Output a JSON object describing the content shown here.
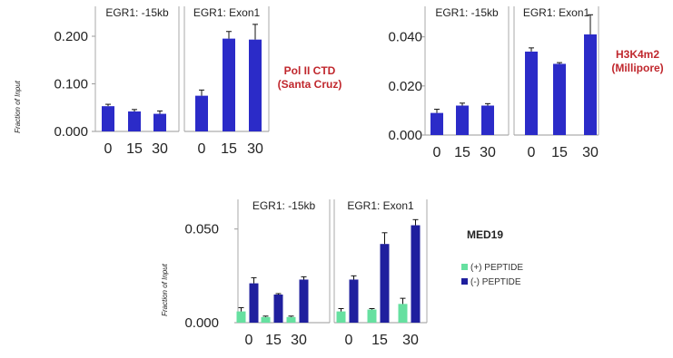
{
  "chart_data": [
    {
      "type": "bar",
      "ylabel": "Fraction of Input",
      "ylim": [
        0,
        0.24
      ],
      "yticks": [
        "0.000",
        "0.100",
        "0.200"
      ],
      "ytick_values": [
        0,
        0.1,
        0.2
      ],
      "annotation": {
        "lines": [
          "Pol II CTD",
          "(Santa Cruz)"
        ],
        "color": "#c0272d"
      },
      "bar_color": "#2b2bc8",
      "panels": [
        {
          "title": "EGR1: -15kb",
          "categories": [
            "0",
            "15",
            "30"
          ],
          "series": [
            {
              "values": [
                0.053,
                0.042,
                0.037
              ],
              "errors": [
                0.004,
                0.004,
                0.006
              ]
            }
          ]
        },
        {
          "title": "EGR1: Exon1",
          "categories": [
            "0",
            "15",
            "30"
          ],
          "series": [
            {
              "values": [
                0.075,
                0.195,
                0.193
              ],
              "errors": [
                0.012,
                0.015,
                0.032
              ]
            }
          ]
        }
      ]
    },
    {
      "type": "bar",
      "ylabel": "",
      "ylim": [
        0,
        0.048
      ],
      "yticks": [
        "0.000",
        "0.020",
        "0.040"
      ],
      "ytick_values": [
        0,
        0.02,
        0.04
      ],
      "annotation": {
        "lines": [
          "H3K4m2",
          "(Millipore)"
        ],
        "color": "#c0272d"
      },
      "bar_color": "#2b2bc8",
      "panels": [
        {
          "title": "EGR1: -15kb",
          "categories": [
            "0",
            "15",
            "30"
          ],
          "series": [
            {
              "values": [
                0.009,
                0.012,
                0.012
              ],
              "errors": [
                0.0015,
                0.001,
                0.0008
              ]
            }
          ]
        },
        {
          "title": "EGR1: Exon1",
          "categories": [
            "0",
            "15",
            "30"
          ],
          "series": [
            {
              "values": [
                0.034,
                0.029,
                0.041
              ],
              "errors": [
                0.0015,
                0.0005,
                0.008
              ]
            }
          ]
        }
      ]
    },
    {
      "type": "bar",
      "ylabel": "Fraction of Input",
      "ylim": [
        0,
        0.06
      ],
      "yticks": [
        "0.000",
        "0.050"
      ],
      "ytick_values": [
        0,
        0.05
      ],
      "annotation": {
        "lines": [
          "MED19"
        ],
        "color": "#222222"
      },
      "legend": {
        "position": "right"
      },
      "panels": [
        {
          "title": "EGR1: -15kb",
          "categories": [
            "0",
            "15",
            "30"
          ],
          "series": [
            {
              "name": "(+) PEPTIDE",
              "color": "#66e0a0",
              "values": [
                0.006,
                0.003,
                0.003
              ],
              "errors": [
                0.002,
                0.0005,
                0.0005
              ]
            },
            {
              "name": "(-) PEPTIDE",
              "color": "#1f1f9e",
              "values": [
                0.021,
                0.015,
                0.023
              ],
              "errors": [
                0.003,
                0.0005,
                0.0015
              ]
            }
          ]
        },
        {
          "title": "EGR1: Exon1",
          "categories": [
            "0",
            "15",
            "30"
          ],
          "series": [
            {
              "name": "(+) PEPTIDE",
              "color": "#66e0a0",
              "values": [
                0.006,
                0.007,
                0.01
              ],
              "errors": [
                0.0015,
                0.0005,
                0.003
              ]
            },
            {
              "name": "(-) PEPTIDE",
              "color": "#1f1f9e",
              "values": [
                0.023,
                0.042,
                0.052
              ],
              "errors": [
                0.002,
                0.006,
                0.003
              ]
            }
          ]
        }
      ]
    }
  ]
}
